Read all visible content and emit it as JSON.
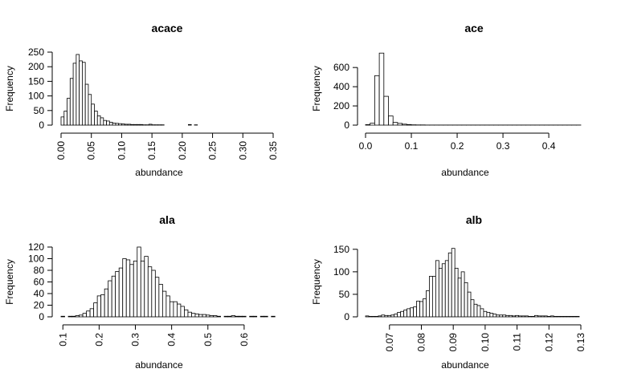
{
  "chart_data": [
    {
      "type": "histogram",
      "title": "acace",
      "xlabel": "abundance",
      "ylabel": "Frequency",
      "xlim": [
        0,
        0.35
      ],
      "ylim": [
        0,
        250
      ],
      "xticks": [
        0.0,
        0.05,
        0.1,
        0.15,
        0.2,
        0.25,
        0.3,
        0.35
      ],
      "xtick_labels": [
        "0.00",
        "0.05",
        "0.10",
        "0.15",
        "0.20",
        "0.25",
        "0.30",
        "0.35"
      ],
      "yticks": [
        0,
        50,
        100,
        150,
        200,
        250
      ],
      "ytick_labels": [
        "0",
        "50",
        "100",
        "150",
        "200",
        "250"
      ],
      "xtick_rotation": "vertical",
      "bin_start": 0.0,
      "bin_width": 0.005,
      "counts": [
        28,
        48,
        92,
        160,
        212,
        242,
        220,
        215,
        140,
        105,
        72,
        48,
        32,
        25,
        16,
        14,
        10,
        7,
        6,
        5,
        4,
        3,
        3,
        2,
        2,
        2,
        2,
        1,
        1,
        3,
        1,
        1,
        1,
        1,
        0,
        0,
        0,
        0,
        0,
        0,
        0,
        0,
        2,
        0,
        1
      ]
    },
    {
      "type": "histogram",
      "title": "ace",
      "xlabel": "abundance",
      "ylabel": "Frequency",
      "xlim": [
        0,
        0.47
      ],
      "ylim": [
        0,
        760
      ],
      "xticks": [
        0.0,
        0.1,
        0.2,
        0.3,
        0.4
      ],
      "xtick_labels": [
        "0.0",
        "0.1",
        "0.2",
        "0.3",
        "0.4"
      ],
      "yticks": [
        0,
        200,
        400,
        600
      ],
      "ytick_labels": [
        "0",
        "200",
        "400",
        "600"
      ],
      "xtick_rotation": "horizontal",
      "bin_start": 0.0,
      "bin_width": 0.01,
      "counts": [
        5,
        20,
        515,
        750,
        300,
        95,
        28,
        18,
        10,
        6,
        3,
        2,
        2,
        1,
        1,
        1,
        1,
        1,
        1,
        1,
        1,
        1,
        1,
        1,
        1,
        1,
        1,
        1,
        1,
        1,
        1,
        1,
        1,
        1,
        1,
        1,
        1,
        1,
        1,
        1,
        1,
        1,
        1,
        1,
        1,
        1,
        1
      ]
    },
    {
      "type": "histogram",
      "title": "ala",
      "xlabel": "abundance",
      "ylabel": "Frequency",
      "xlim": [
        0.095,
        0.68
      ],
      "ylim": [
        0,
        120
      ],
      "xticks": [
        0.1,
        0.2,
        0.3,
        0.4,
        0.5,
        0.6
      ],
      "xtick_labels": [
        "0.1",
        "0.2",
        "0.3",
        "0.4",
        "0.5",
        "0.6"
      ],
      "yticks": [
        0,
        20,
        40,
        60,
        80,
        100,
        120
      ],
      "ytick_labels": [
        "0",
        "20",
        "40",
        "60",
        "80",
        "100",
        "120"
      ],
      "xtick_rotation": "vertical",
      "bin_start": 0.095,
      "bin_width": 0.01,
      "counts": [
        1,
        0,
        1,
        1,
        2,
        3,
        6,
        10,
        14,
        24,
        36,
        38,
        48,
        62,
        70,
        78,
        84,
        100,
        98,
        90,
        96,
        120,
        96,
        104,
        86,
        80,
        68,
        56,
        44,
        36,
        26,
        26,
        22,
        18,
        12,
        8,
        6,
        5,
        4,
        4,
        3,
        2,
        2,
        1,
        0,
        1,
        1,
        2,
        1,
        1,
        1,
        0,
        1,
        1,
        0,
        1,
        1,
        0,
        1
      ]
    },
    {
      "type": "histogram",
      "title": "alb",
      "xlabel": "abundance",
      "ylabel": "Frequency",
      "xlim": [
        0.0625,
        0.13
      ],
      "ylim": [
        0,
        155
      ],
      "xticks": [
        0.07,
        0.08,
        0.09,
        0.1,
        0.11,
        0.12,
        0.13
      ],
      "xtick_labels": [
        "0.07",
        "0.08",
        "0.09",
        "0.10",
        "0.11",
        "0.12",
        "0.13"
      ],
      "yticks": [
        0,
        50,
        100,
        150
      ],
      "ytick_labels": [
        "0",
        "50",
        "100",
        "150"
      ],
      "xtick_rotation": "vertical",
      "bin_start": 0.0625,
      "bin_width": 0.001,
      "counts": [
        2,
        1,
        1,
        1,
        2,
        4,
        3,
        3,
        4,
        6,
        10,
        12,
        15,
        18,
        20,
        22,
        35,
        34,
        40,
        58,
        90,
        90,
        125,
        108,
        118,
        125,
        142,
        152,
        108,
        86,
        100,
        76,
        55,
        38,
        28,
        25,
        18,
        12,
        10,
        8,
        6,
        4,
        4,
        4,
        3,
        3,
        2,
        3,
        2,
        2,
        2,
        1,
        1,
        3,
        2,
        2,
        2,
        1,
        2,
        1,
        1,
        1,
        1,
        1,
        1,
        1,
        1
      ]
    }
  ]
}
